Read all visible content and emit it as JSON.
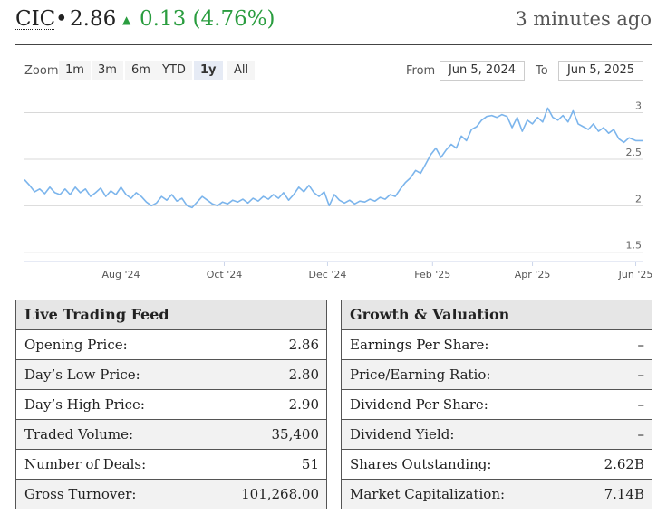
{
  "header": {
    "ticker": "CIC",
    "separator": "•",
    "price": "2.86",
    "arrow": "▲",
    "change": "0.13 (4.76%)",
    "updated": "3 minutes ago"
  },
  "controls": {
    "zoom_label": "Zoom",
    "zoom_options": [
      "1m",
      "3m",
      "6m",
      "YTD",
      "1y",
      "All"
    ],
    "zoom_active": "1y",
    "from_label": "From",
    "from_value": "Jun 5, 2024",
    "to_label": "To",
    "to_value": "Jun 5, 2025"
  },
  "chart_data": {
    "type": "line",
    "start_date": "2024-06-05",
    "end_date": "2025-06-05",
    "ylim": [
      1.4,
      3.2
    ],
    "yticks": [
      1.5,
      2,
      2.5,
      3
    ],
    "ytick_labels": [
      "1.5",
      "2",
      "2.5",
      "3"
    ],
    "xtick_dates": [
      "2024-08-01",
      "2024-10-01",
      "2024-12-01",
      "2025-02-01",
      "2025-04-01",
      "2025-06-01"
    ],
    "xtick_labels": [
      "Aug '24",
      "Oct '24",
      "Dec '24",
      "Feb '25",
      "Apr '25",
      "Jun '25"
    ],
    "grid": true,
    "line_color": "#7cb5ec",
    "series": [
      {
        "name": "",
        "points": [
          [
            "2024-06-05",
            2.28
          ],
          [
            "2024-06-08",
            2.22
          ],
          [
            "2024-06-11",
            2.15
          ],
          [
            "2024-06-14",
            2.18
          ],
          [
            "2024-06-17",
            2.13
          ],
          [
            "2024-06-20",
            2.2
          ],
          [
            "2024-06-23",
            2.14
          ],
          [
            "2024-06-26",
            2.12
          ],
          [
            "2024-06-29",
            2.18
          ],
          [
            "2024-07-02",
            2.12
          ],
          [
            "2024-07-05",
            2.2
          ],
          [
            "2024-07-08",
            2.14
          ],
          [
            "2024-07-11",
            2.18
          ],
          [
            "2024-07-14",
            2.1
          ],
          [
            "2024-07-17",
            2.14
          ],
          [
            "2024-07-20",
            2.19
          ],
          [
            "2024-07-23",
            2.1
          ],
          [
            "2024-07-26",
            2.16
          ],
          [
            "2024-07-29",
            2.12
          ],
          [
            "2024-08-01",
            2.2
          ],
          [
            "2024-08-04",
            2.12
          ],
          [
            "2024-08-07",
            2.08
          ],
          [
            "2024-08-10",
            2.14
          ],
          [
            "2024-08-13",
            2.1
          ],
          [
            "2024-08-16",
            2.04
          ],
          [
            "2024-08-19",
            2.0
          ],
          [
            "2024-08-22",
            2.03
          ],
          [
            "2024-08-25",
            2.1
          ],
          [
            "2024-08-28",
            2.06
          ],
          [
            "2024-08-31",
            2.12
          ],
          [
            "2024-09-03",
            2.05
          ],
          [
            "2024-09-06",
            2.08
          ],
          [
            "2024-09-09",
            2.0
          ],
          [
            "2024-09-12",
            1.98
          ],
          [
            "2024-09-15",
            2.04
          ],
          [
            "2024-09-18",
            2.1
          ],
          [
            "2024-09-21",
            2.06
          ],
          [
            "2024-09-24",
            2.02
          ],
          [
            "2024-09-27",
            2.0
          ],
          [
            "2024-09-30",
            2.04
          ],
          [
            "2024-10-03",
            2.02
          ],
          [
            "2024-10-06",
            2.06
          ],
          [
            "2024-10-09",
            2.04
          ],
          [
            "2024-10-12",
            2.07
          ],
          [
            "2024-10-15",
            2.03
          ],
          [
            "2024-10-18",
            2.08
          ],
          [
            "2024-10-21",
            2.05
          ],
          [
            "2024-10-24",
            2.1
          ],
          [
            "2024-10-27",
            2.07
          ],
          [
            "2024-10-30",
            2.12
          ],
          [
            "2024-11-02",
            2.08
          ],
          [
            "2024-11-05",
            2.14
          ],
          [
            "2024-11-08",
            2.06
          ],
          [
            "2024-11-11",
            2.12
          ],
          [
            "2024-11-14",
            2.2
          ],
          [
            "2024-11-17",
            2.15
          ],
          [
            "2024-11-20",
            2.22
          ],
          [
            "2024-11-23",
            2.14
          ],
          [
            "2024-11-26",
            2.1
          ],
          [
            "2024-11-29",
            2.15
          ],
          [
            "2024-12-02",
            2.0
          ],
          [
            "2024-12-05",
            2.12
          ],
          [
            "2024-12-08",
            2.06
          ],
          [
            "2024-12-11",
            2.03
          ],
          [
            "2024-12-14",
            2.06
          ],
          [
            "2024-12-17",
            2.02
          ],
          [
            "2024-12-20",
            2.05
          ],
          [
            "2024-12-23",
            2.04
          ],
          [
            "2024-12-26",
            2.07
          ],
          [
            "2024-12-29",
            2.05
          ],
          [
            "2025-01-01",
            2.09
          ],
          [
            "2025-01-04",
            2.07
          ],
          [
            "2025-01-07",
            2.12
          ],
          [
            "2025-01-10",
            2.1
          ],
          [
            "2025-01-13",
            2.18
          ],
          [
            "2025-01-16",
            2.25
          ],
          [
            "2025-01-19",
            2.3
          ],
          [
            "2025-01-22",
            2.38
          ],
          [
            "2025-01-25",
            2.35
          ],
          [
            "2025-01-28",
            2.45
          ],
          [
            "2025-01-31",
            2.55
          ],
          [
            "2025-02-03",
            2.62
          ],
          [
            "2025-02-06",
            2.52
          ],
          [
            "2025-02-09",
            2.6
          ],
          [
            "2025-02-12",
            2.66
          ],
          [
            "2025-02-15",
            2.62
          ],
          [
            "2025-02-18",
            2.75
          ],
          [
            "2025-02-21",
            2.7
          ],
          [
            "2025-02-24",
            2.82
          ],
          [
            "2025-02-27",
            2.85
          ],
          [
            "2025-03-02",
            2.92
          ],
          [
            "2025-03-05",
            2.96
          ],
          [
            "2025-03-08",
            2.97
          ],
          [
            "2025-03-11",
            2.95
          ],
          [
            "2025-03-14",
            2.98
          ],
          [
            "2025-03-17",
            2.96
          ],
          [
            "2025-03-20",
            2.84
          ],
          [
            "2025-03-23",
            2.95
          ],
          [
            "2025-03-26",
            2.8
          ],
          [
            "2025-03-29",
            2.92
          ],
          [
            "2025-04-01",
            2.88
          ],
          [
            "2025-04-04",
            2.95
          ],
          [
            "2025-04-07",
            2.9
          ],
          [
            "2025-04-10",
            3.05
          ],
          [
            "2025-04-13",
            2.95
          ],
          [
            "2025-04-16",
            2.92
          ],
          [
            "2025-04-19",
            2.97
          ],
          [
            "2025-04-22",
            2.9
          ],
          [
            "2025-04-25",
            3.02
          ],
          [
            "2025-04-28",
            2.88
          ],
          [
            "2025-05-01",
            2.85
          ],
          [
            "2025-05-04",
            2.82
          ],
          [
            "2025-05-07",
            2.88
          ],
          [
            "2025-05-10",
            2.8
          ],
          [
            "2025-05-13",
            2.84
          ],
          [
            "2025-05-16",
            2.78
          ],
          [
            "2025-05-19",
            2.82
          ],
          [
            "2025-05-22",
            2.72
          ],
          [
            "2025-05-25",
            2.68
          ],
          [
            "2025-05-28",
            2.73
          ],
          [
            "2025-06-01",
            2.7
          ],
          [
            "2025-06-05",
            2.7
          ]
        ]
      }
    ]
  },
  "live_feed": {
    "title": "Live Trading Feed",
    "rows": [
      {
        "label": "Opening Price:",
        "value": "2.86"
      },
      {
        "label": "Day’s Low Price:",
        "value": "2.80"
      },
      {
        "label": "Day’s High Price:",
        "value": "2.90"
      },
      {
        "label": "Traded Volume:",
        "value": "35,400"
      },
      {
        "label": "Number of Deals:",
        "value": "51"
      },
      {
        "label": "Gross Turnover:",
        "value": "101,268.00"
      }
    ]
  },
  "growth": {
    "title": "Growth & Valuation",
    "rows": [
      {
        "label": "Earnings Per Share:",
        "value": "–"
      },
      {
        "label": "Price/Earning Ratio:",
        "value": "–"
      },
      {
        "label": "Dividend Per Share:",
        "value": "–"
      },
      {
        "label": "Dividend Yield:",
        "value": "–"
      },
      {
        "label": "Shares Outstanding:",
        "value": "2.62B"
      },
      {
        "label": "Market Capitalization:",
        "value": "7.14B"
      }
    ]
  }
}
